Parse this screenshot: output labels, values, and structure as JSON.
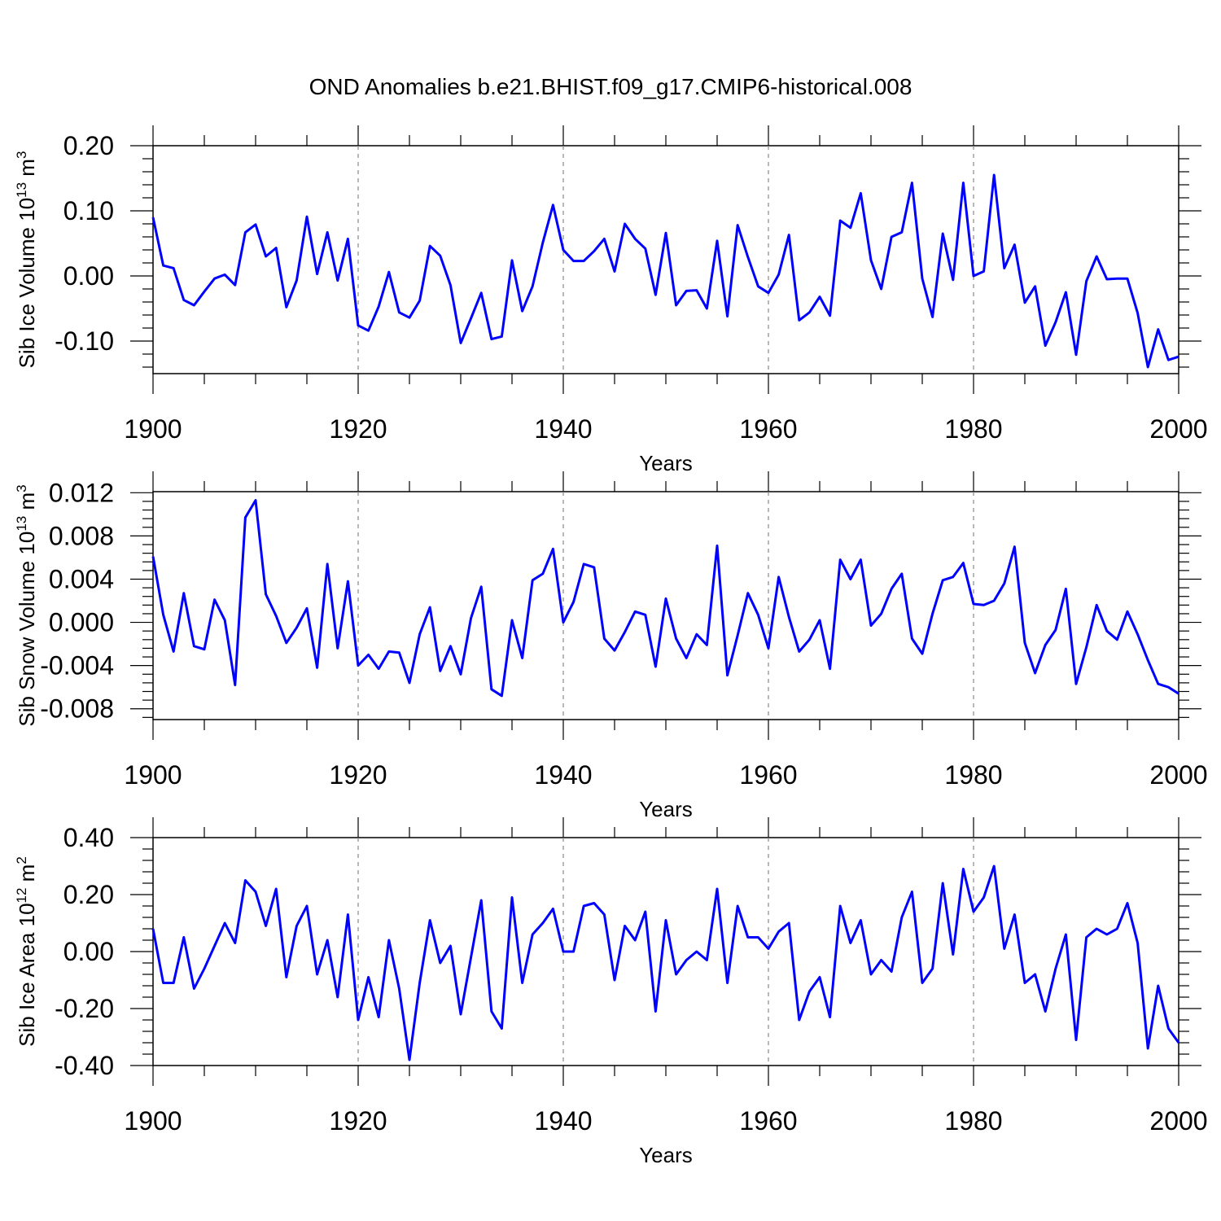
{
  "title": "OND Anomalies b.e21.BHIST.f09_g17.CMIP6-historical.008",
  "line_color": "#0000ff",
  "chart_data": [
    {
      "type": "line",
      "ylabel_main": "Sib Ice Volume 10",
      "ylabel_exp": "13",
      "ylabel_unit": " m",
      "ylabel_unit_exp": "3",
      "xlabel": "Years",
      "xlim": [
        1900,
        2000
      ],
      "ylim": [
        -0.15,
        0.2
      ],
      "x_ticks": [
        1900,
        1920,
        1940,
        1960,
        1980,
        2000
      ],
      "x_tick_labels": [
        "1900",
        "1920",
        "1940",
        "1960",
        "1980",
        "2000"
      ],
      "y_ticks": [
        0.2,
        0.1,
        0.0,
        -0.1
      ],
      "y_tick_labels": [
        "0.20",
        "0.10",
        "0.00",
        "-0.10"
      ],
      "y_minor_step": 0.02,
      "x_start": 1900,
      "values": [
        0.09,
        0.016,
        0.012,
        -0.037,
        -0.045,
        -0.024,
        -0.004,
        0.002,
        -0.014,
        0.067,
        0.079,
        0.03,
        0.043,
        -0.048,
        -0.007,
        0.091,
        0.003,
        0.067,
        -0.007,
        0.057,
        -0.076,
        -0.084,
        -0.047,
        0.006,
        -0.056,
        -0.064,
        -0.038,
        0.046,
        0.031,
        -0.014,
        -0.103,
        -0.065,
        -0.026,
        -0.097,
        -0.093,
        0.024,
        -0.054,
        -0.016,
        0.051,
        0.109,
        0.04,
        0.023,
        0.023,
        0.038,
        0.057,
        0.007,
        0.08,
        0.057,
        0.042,
        -0.029,
        0.066,
        -0.045,
        -0.023,
        -0.022,
        -0.05,
        0.054,
        -0.062,
        0.078,
        0.029,
        -0.016,
        -0.026,
        0.002,
        0.063,
        -0.068,
        -0.056,
        -0.032,
        -0.061,
        0.085,
        0.074,
        0.127,
        0.024,
        -0.02,
        0.06,
        0.067,
        0.143,
        -0.004,
        -0.063,
        0.065,
        -0.006,
        0.143,
        0.0,
        0.007,
        0.155,
        0.012,
        0.048,
        -0.041,
        -0.016,
        -0.107,
        -0.071,
        -0.025,
        -0.121,
        -0.008,
        0.03,
        -0.005,
        -0.004,
        -0.004,
        -0.057,
        -0.14,
        -0.082,
        -0.129,
        -0.124
      ]
    },
    {
      "type": "line",
      "ylabel_main": "Sib Snow Volume 10",
      "ylabel_exp": "13",
      "ylabel_unit": " m",
      "ylabel_unit_exp": "3",
      "xlabel": "Years",
      "xlim": [
        1900,
        2000
      ],
      "ylim": [
        -0.009,
        0.0121
      ],
      "x_ticks": [
        1900,
        1920,
        1940,
        1960,
        1980,
        2000
      ],
      "x_tick_labels": [
        "1900",
        "1920",
        "1940",
        "1960",
        "1980",
        "2000"
      ],
      "y_ticks": [
        0.012,
        0.008,
        0.004,
        0.0,
        -0.004,
        -0.008
      ],
      "y_tick_labels": [
        "0.012",
        "0.008",
        "0.004",
        "0.000",
        "-0.004",
        "-0.008"
      ],
      "y_minor_step": 0.0008,
      "x_start": 1900,
      "values": [
        0.0061,
        0.0007,
        -0.0027,
        0.0027,
        -0.0022,
        -0.0025,
        0.0021,
        0.0002,
        -0.0058,
        0.0097,
        0.0113,
        0.0026,
        0.0006,
        -0.0019,
        -0.0005,
        0.0013,
        -0.0042,
        0.0054,
        -0.0024,
        0.0038,
        -0.004,
        -0.003,
        -0.0043,
        -0.0027,
        -0.0028,
        -0.0056,
        -0.0011,
        0.0014,
        -0.0045,
        -0.0022,
        -0.0048,
        0.0004,
        0.0033,
        -0.0062,
        -0.0068,
        0.0002,
        -0.0033,
        0.0039,
        0.0045,
        0.0068,
        0.0,
        0.0019,
        0.0054,
        0.0051,
        -0.0015,
        -0.0026,
        -0.0009,
        0.001,
        0.0007,
        -0.0041,
        0.0022,
        -0.0015,
        -0.0033,
        -0.0011,
        -0.0021,
        0.0071,
        -0.0049,
        -0.0012,
        0.0027,
        0.0007,
        -0.0024,
        0.0042,
        0.0005,
        -0.0027,
        -0.0016,
        0.0002,
        -0.0043,
        0.0058,
        0.004,
        0.0058,
        -0.0003,
        0.0008,
        0.0031,
        0.0045,
        -0.0015,
        -0.0029,
        0.0008,
        0.0039,
        0.0042,
        0.0055,
        0.0017,
        0.0016,
        0.002,
        0.0036,
        0.007,
        -0.0019,
        -0.0047,
        -0.0021,
        -0.0007,
        0.0031,
        -0.0057,
        -0.0023,
        0.0016,
        -0.0008,
        -0.0016,
        0.001,
        -0.0011,
        -0.0035,
        -0.0057,
        -0.006,
        -0.0066
      ]
    },
    {
      "type": "line",
      "ylabel_main": "Sib Ice Area 10",
      "ylabel_exp": "12",
      "ylabel_unit": " m",
      "ylabel_unit_exp": "2",
      "xlabel": "Years",
      "xlim": [
        1900,
        2000
      ],
      "ylim": [
        -0.4,
        0.4
      ],
      "x_ticks": [
        1900,
        1920,
        1940,
        1960,
        1980,
        2000
      ],
      "x_tick_labels": [
        "1900",
        "1920",
        "1940",
        "1960",
        "1980",
        "2000"
      ],
      "y_ticks": [
        0.4,
        0.2,
        0.0,
        -0.2,
        -0.4
      ],
      "y_tick_labels": [
        "0.40",
        "0.20",
        "0.00",
        "-0.20",
        "-0.40"
      ],
      "y_minor_step": 0.04,
      "x_start": 1900,
      "values": [
        0.08,
        -0.11,
        -0.11,
        0.05,
        -0.13,
        -0.06,
        0.02,
        0.1,
        0.03,
        0.25,
        0.21,
        0.09,
        0.22,
        -0.09,
        0.09,
        0.16,
        -0.08,
        0.04,
        -0.16,
        0.13,
        -0.24,
        -0.09,
        -0.23,
        0.04,
        -0.13,
        -0.38,
        -0.11,
        0.11,
        -0.04,
        0.02,
        -0.22,
        -0.02,
        0.18,
        -0.21,
        -0.27,
        0.19,
        -0.11,
        0.06,
        0.1,
        0.15,
        0.0,
        0.0,
        0.16,
        0.17,
        0.13,
        -0.1,
        0.09,
        0.04,
        0.14,
        -0.21,
        0.11,
        -0.08,
        -0.03,
        0.0,
        -0.03,
        0.22,
        -0.11,
        0.16,
        0.05,
        0.05,
        0.01,
        0.07,
        0.1,
        -0.24,
        -0.14,
        -0.09,
        -0.23,
        0.16,
        0.03,
        0.11,
        -0.08,
        -0.03,
        -0.07,
        0.12,
        0.21,
        -0.11,
        -0.06,
        0.24,
        -0.01,
        0.29,
        0.14,
        0.19,
        0.3,
        0.01,
        0.13,
        -0.11,
        -0.08,
        -0.21,
        -0.06,
        0.06,
        -0.31,
        0.05,
        0.08,
        0.06,
        0.08,
        0.17,
        0.03,
        -0.34,
        -0.12,
        -0.27,
        -0.32
      ]
    }
  ]
}
